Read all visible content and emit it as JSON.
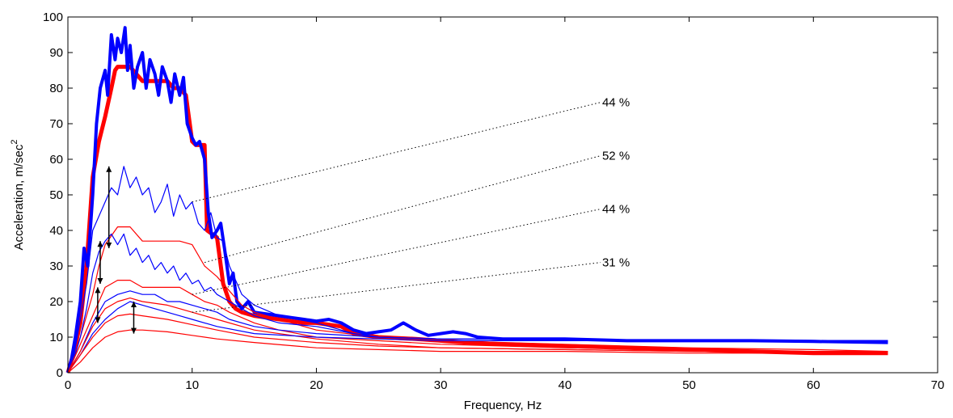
{
  "chart_data": {
    "type": "line",
    "xlabel": "Frequency, Hz",
    "ylabel": "Acceleration, m/sec",
    "ylabel_superscript": "2",
    "xlim": [
      0,
      70
    ],
    "ylim": [
      0,
      100
    ],
    "xticks": [
      "0",
      "10",
      "20",
      "30",
      "40",
      "50",
      "60",
      "70"
    ],
    "yticks": [
      "0",
      "10",
      "20",
      "30",
      "40",
      "50",
      "60",
      "70",
      "80",
      "90",
      "100"
    ],
    "grid": false,
    "colors": {
      "blue": "#0000ff",
      "red": "#ff0000",
      "axis": "#000000"
    },
    "series": [
      {
        "color": "#ff0000",
        "width": 5,
        "x": [
          0,
          0.5,
          1,
          1.5,
          2,
          2.5,
          3,
          3.5,
          3.8,
          4,
          5,
          6,
          6.5,
          7,
          8,
          8.5,
          9,
          9.5,
          10,
          10.3,
          11,
          11.2,
          12,
          12.5,
          13,
          13.5,
          14,
          15,
          16,
          17,
          18,
          19,
          20,
          22,
          23,
          25,
          28,
          30,
          32,
          35,
          40,
          45,
          50,
          55,
          60,
          66
        ],
        "y": [
          0,
          6,
          14,
          30,
          55,
          65,
          72,
          80,
          85,
          86,
          86,
          82,
          82,
          82,
          82,
          80,
          80,
          78,
          65,
          64,
          64,
          40,
          38,
          25,
          20,
          18,
          17,
          16,
          15.5,
          15,
          14.5,
          14,
          14,
          13,
          11,
          10,
          9.5,
          9,
          8.5,
          8,
          7.5,
          7,
          6.5,
          6,
          5.5,
          5.5
        ]
      },
      {
        "color": "#0000ff",
        "width": 4,
        "x": [
          0,
          0.3,
          0.6,
          1,
          1.3,
          1.6,
          2,
          2.3,
          2.6,
          3,
          3.2,
          3.5,
          3.8,
          4,
          4.3,
          4.6,
          4.8,
          5,
          5.3,
          5.6,
          6,
          6.3,
          6.6,
          7,
          7.3,
          7.6,
          8,
          8.3,
          8.6,
          9,
          9.3,
          9.6,
          10,
          10.3,
          10.6,
          11,
          11.3,
          11.6,
          12,
          12.3,
          12.6,
          13,
          13.3,
          13.6,
          14,
          14.5,
          15,
          16,
          17,
          18,
          19,
          20,
          21,
          22,
          23,
          24,
          25,
          26,
          27,
          28,
          29,
          30,
          31,
          32,
          33,
          35,
          40,
          45,
          50,
          55,
          60,
          66
        ],
        "y": [
          0,
          4,
          10,
          20,
          35,
          30,
          50,
          70,
          80,
          85,
          78,
          95,
          88,
          94,
          90,
          97,
          85,
          92,
          80,
          86,
          90,
          80,
          88,
          84,
          78,
          86,
          82,
          76,
          84,
          78,
          83,
          70,
          66,
          64,
          65,
          60,
          45,
          38,
          40,
          42,
          35,
          25,
          28,
          20,
          18,
          20,
          17,
          16.5,
          16,
          15.5,
          15,
          14.5,
          15,
          14,
          12,
          11,
          11.5,
          12,
          14,
          12,
          10.5,
          11,
          11.5,
          11,
          10,
          9.5,
          9.5,
          9,
          9,
          9,
          8.8,
          8.5
        ]
      },
      {
        "color": "#ff0000",
        "width": 1.2,
        "x": [
          0,
          1,
          2,
          2.5,
          3,
          4,
          5,
          6,
          7,
          8,
          9,
          10,
          11,
          12,
          13,
          14,
          15,
          17,
          20,
          25,
          30,
          40,
          50,
          60,
          66
        ],
        "y": [
          0,
          10,
          22,
          30,
          36,
          41,
          41,
          37,
          37,
          37,
          37,
          36,
          30,
          27,
          23,
          19,
          17,
          15,
          12,
          10,
          9,
          8,
          7,
          6.5,
          6
        ]
      },
      {
        "color": "#0000ff",
        "width": 1.2,
        "x": [
          0,
          0.5,
          1,
          1.5,
          2,
          2.5,
          3,
          3.5,
          4,
          4.5,
          5,
          5.5,
          6,
          6.5,
          7,
          7.5,
          8,
          8.5,
          9,
          9.5,
          10,
          10.5,
          11,
          11.5,
          12,
          12.5,
          13,
          14,
          15,
          17,
          20,
          23,
          25,
          30,
          66
        ],
        "y": [
          0,
          5,
          15,
          25,
          40,
          44,
          48,
          52,
          50,
          58,
          52,
          55,
          50,
          52,
          45,
          48,
          53,
          44,
          50,
          46,
          48,
          42,
          40,
          45,
          38,
          37,
          30,
          22,
          19,
          16,
          14,
          11,
          10,
          9.5,
          9
        ]
      },
      {
        "color": "#0000ff",
        "width": 1.2,
        "x": [
          0,
          0.5,
          1,
          1.5,
          2,
          2.5,
          3,
          3.5,
          4,
          4.5,
          5,
          5.5,
          6,
          6.5,
          7,
          7.5,
          8,
          8.5,
          9,
          9.5,
          10,
          10.5,
          11,
          11.5,
          12,
          13,
          14,
          15,
          17,
          20,
          23,
          25,
          30,
          66
        ],
        "y": [
          0,
          4,
          10,
          18,
          28,
          34,
          37,
          39,
          36,
          39,
          33,
          35,
          31,
          33,
          29,
          31,
          28,
          30,
          26,
          28,
          25,
          26,
          23,
          24,
          22,
          20,
          18,
          16,
          14,
          13,
          11,
          10,
          9.5,
          9
        ]
      },
      {
        "color": "#ff0000",
        "width": 1.2,
        "x": [
          0,
          1,
          2,
          2.5,
          3,
          4,
          5,
          6,
          7,
          8,
          9,
          10,
          11,
          12,
          13,
          15,
          17,
          20,
          25,
          30,
          40,
          50,
          60,
          66
        ],
        "y": [
          0,
          8,
          16,
          20,
          24,
          26,
          26,
          24,
          24,
          24,
          24,
          22,
          20,
          19,
          17,
          14,
          12,
          10,
          9,
          8,
          7,
          6.5,
          6,
          6
        ]
      },
      {
        "color": "#0000ff",
        "width": 1.2,
        "x": [
          0,
          1,
          2,
          3,
          4,
          5,
          6,
          7,
          8,
          9,
          10,
          11,
          12,
          13,
          15,
          17,
          20,
          25,
          30,
          66
        ],
        "y": [
          0,
          6,
          14,
          20,
          22,
          23,
          22,
          22,
          20,
          20,
          19,
          18,
          17,
          15,
          13,
          12,
          11,
          10,
          9.5,
          9
        ]
      },
      {
        "color": "#ff0000",
        "width": 1.2,
        "x": [
          0,
          1,
          2,
          3,
          4,
          5,
          6,
          8,
          10,
          12,
          15,
          20,
          25,
          30,
          40,
          50,
          60,
          66
        ],
        "y": [
          0,
          6,
          13,
          18,
          20,
          21,
          20,
          19,
          17,
          15,
          12,
          9.5,
          8,
          7,
          6.5,
          6,
          5.5,
          5.5
        ]
      },
      {
        "color": "#0000ff",
        "width": 1.2,
        "x": [
          0,
          1,
          2,
          3,
          4,
          5,
          6,
          7,
          8,
          9,
          10,
          12,
          15,
          20,
          25,
          30,
          66
        ],
        "y": [
          0,
          5,
          11,
          15,
          18,
          20,
          19,
          18,
          17,
          16,
          15,
          13,
          11,
          10,
          9.5,
          9,
          9
        ]
      },
      {
        "color": "#ff0000",
        "width": 1.2,
        "x": [
          0,
          1,
          2,
          3,
          4,
          5,
          6,
          8,
          10,
          12,
          15,
          20,
          25,
          30,
          40,
          50,
          60,
          66
        ],
        "y": [
          0,
          5,
          10,
          14,
          16,
          16.5,
          16,
          15,
          13.5,
          12,
          10,
          8.5,
          7.5,
          7,
          6.5,
          6,
          5.5,
          5.5
        ]
      },
      {
        "color": "#ff0000",
        "width": 1.2,
        "x": [
          0,
          1,
          2,
          3,
          4,
          5,
          6,
          8,
          10,
          12,
          15,
          20,
          25,
          30,
          40,
          50,
          60,
          66
        ],
        "y": [
          0,
          3,
          7,
          10,
          11.5,
          12,
          12,
          11.5,
          10.5,
          9.5,
          8.5,
          7,
          6.5,
          6,
          6,
          5.5,
          5.5,
          5.5
        ]
      }
    ],
    "arrows": [
      {
        "x": 3.3,
        "y1": 58,
        "y2": 35
      },
      {
        "x": 2.6,
        "y1": 37,
        "y2": 25
      },
      {
        "x": 2.4,
        "y1": 24,
        "y2": 14
      },
      {
        "x": 5.3,
        "y1": 20,
        "y2": 11
      }
    ],
    "annotations": [
      {
        "text": "44 %",
        "x": 43,
        "y": 76,
        "from_x": 10,
        "from_y": 48
      },
      {
        "text": "52 %",
        "x": 43,
        "y": 61,
        "from_x": 11,
        "from_y": 31
      },
      {
        "text": "44 %",
        "x": 43,
        "y": 46,
        "from_x": 10,
        "from_y": 22
      },
      {
        "text": "31 %",
        "x": 43,
        "y": 31,
        "from_x": 10,
        "from_y": 17
      }
    ]
  }
}
